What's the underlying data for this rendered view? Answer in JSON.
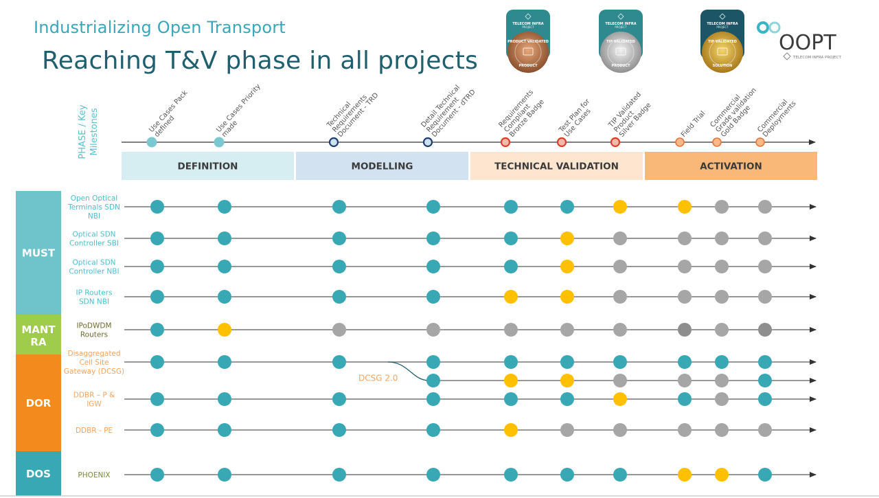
{
  "header": {
    "subtitle": "Industrializing Open Transport",
    "title": "Reaching T&V phase in all projects"
  },
  "logos": {
    "badges": [
      {
        "org": "TELECOM INFRA",
        "org_sub": "PROJECT",
        "ring": "PRODUCT VALIDATED",
        "bottom": "PRODUCT",
        "tier": "bronze",
        "bg": "#2f8a8f",
        "ring_color": "#b8734a"
      },
      {
        "org": "TELECOM INFRA",
        "org_sub": "PROJECT",
        "ring": "TIP VALIDATED",
        "bottom": "PRODUCT",
        "tier": "silver",
        "bg": "#2f8a8f",
        "ring_color": "#b5b5b5"
      },
      {
        "org": "TELECOM INFRA",
        "org_sub": "PROJECT",
        "ring": "TIP VALIDATED",
        "bottom": "SOLUTION",
        "tier": "gold",
        "bg": "#1b5566",
        "ring_color": "#d4a82a"
      }
    ],
    "oopt": {
      "name": "OOPT",
      "org": "TELECOM INFRA PROJECT"
    }
  },
  "timeline": {
    "side_label_line1": "PHASE / Key",
    "side_label_line2": "Milestones",
    "milestones": [
      {
        "lines": [
          "Use Cases Pack",
          "defined"
        ],
        "style": "definition"
      },
      {
        "lines": [
          "Use Cases Priority",
          "made"
        ],
        "style": "definition"
      },
      {
        "lines": [
          "Technical",
          "Requirements",
          "Document - TRD"
        ],
        "style": "modelling"
      },
      {
        "lines": [
          "Detail Technical",
          "Requirement",
          "Document - dTRD"
        ],
        "style": "modelling"
      },
      {
        "lines": [
          "Requirements",
          "Compliant",
          "Bronze Badge"
        ],
        "style": "validation"
      },
      {
        "lines": [
          "Test Plan for",
          "Use Cases"
        ],
        "style": "validation"
      },
      {
        "lines": [
          "TIP Validated",
          "Product",
          "Silver Badge"
        ],
        "style": "validation"
      },
      {
        "lines": [
          "Field Trial"
        ],
        "style": "activation"
      },
      {
        "lines": [
          "Commercial",
          "Grade validation",
          "Gold Badge"
        ],
        "style": "activation"
      },
      {
        "lines": [
          "Commercial",
          "Deployments"
        ],
        "style": "activation"
      }
    ],
    "phases": [
      {
        "name": "DEFINITION",
        "color": "#d6eef2"
      },
      {
        "name": "MODELLING",
        "color": "#d3e2f1"
      },
      {
        "name": "TECHNICAL VALIDATION",
        "color": "#fde5d0"
      },
      {
        "name": "ACTIVATION",
        "color": "#f9b877"
      }
    ]
  },
  "legend_colors": {
    "done": "#38a8b5",
    "in_progress": "#ffc000",
    "pending": "#a6a6a6",
    "pending_dark": "#8e8e8e"
  },
  "groups": [
    {
      "name": "MUST",
      "color": "#6fc3cb"
    },
    {
      "name_line1": "MANT",
      "name_line2": "RA",
      "color": "#9fcc4a"
    },
    {
      "name": "DOR",
      "color": "#f28a1e"
    },
    {
      "name": "DOS",
      "color": "#38a8b5"
    }
  ],
  "projects": [
    {
      "label": [
        "Open Optical",
        "Terminals SDN",
        "NBI"
      ],
      "group": 0,
      "label_color": "#4fbccc",
      "status": [
        "done",
        "done",
        "done",
        "done",
        "done",
        "done",
        "in_progress",
        "in_progress",
        "pending",
        "pending"
      ]
    },
    {
      "label": [
        "Optical SDN",
        "Controller SBI"
      ],
      "group": 0,
      "label_color": "#4fbccc",
      "status": [
        "done",
        "done",
        "done",
        "done",
        "done",
        "in_progress",
        "pending",
        "pending",
        "pending",
        "pending"
      ]
    },
    {
      "label": [
        "Optical SDN",
        "Controller NBI"
      ],
      "group": 0,
      "label_color": "#4fbccc",
      "status": [
        "done",
        "done",
        "done",
        "done",
        "done",
        "in_progress",
        "pending",
        "pending",
        "pending",
        "pending"
      ]
    },
    {
      "label": [
        "IP Routers",
        "SDN NBI"
      ],
      "group": 0,
      "label_color": "#4fbccc",
      "status": [
        "done",
        "done",
        "done",
        "done",
        "in_progress",
        "in_progress",
        "pending",
        "pending",
        "pending",
        "pending"
      ]
    },
    {
      "label": [
        "IPoDWDM",
        "Routers"
      ],
      "group": 1,
      "label_color": "#6b6b2e",
      "status": [
        "done",
        "in_progress",
        "pending",
        "pending",
        "pending",
        "pending",
        "pending",
        "pending_dark",
        "pending",
        "pending_dark"
      ]
    },
    {
      "label": [
        "Disaggregated",
        "Cell Site",
        "Gateway (DCSG)"
      ],
      "group": 2,
      "label_color": "#f4a460",
      "status": [
        "done",
        "done",
        "done",
        "done",
        "done",
        "done",
        "done",
        "done",
        "done",
        "done"
      ]
    },
    {
      "label": [],
      "group": 2,
      "label_color": "#f4a460",
      "branch_label": "DCSG 2.0",
      "status": [
        null,
        null,
        null,
        "done",
        "in_progress",
        "in_progress",
        "pending",
        "pending",
        "pending",
        "done"
      ]
    },
    {
      "label": [
        "DDBR – P &",
        "IGW"
      ],
      "group": 2,
      "label_color": "#f4a460",
      "status": [
        "done",
        "done",
        "done",
        "done",
        "done",
        "done",
        "in_progress",
        "done",
        "pending",
        "done"
      ]
    },
    {
      "label": [
        "DDBR - PE"
      ],
      "group": 2,
      "label_color": "#f4a460",
      "status": [
        "done",
        "done",
        "done",
        "done",
        "in_progress",
        "pending",
        "pending",
        "pending",
        "pending",
        "pending"
      ]
    },
    {
      "label": [
        "PHOENIX"
      ],
      "group": 3,
      "label_color": "#7a8a3a",
      "status": [
        "done",
        "done",
        "done",
        "done",
        "done",
        "done",
        "done",
        "in_progress",
        "in_progress",
        "done"
      ]
    }
  ]
}
